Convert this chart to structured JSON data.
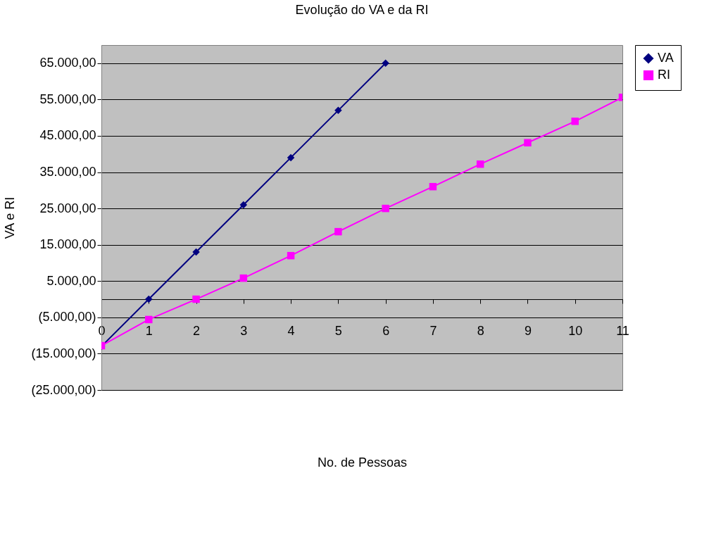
{
  "chart_data": {
    "type": "line",
    "title": "Evolução do VA e da RI",
    "xlabel": "No. de Pessoas",
    "ylabel": "VA e RI",
    "x": [
      0,
      1,
      2,
      3,
      4,
      5,
      6,
      7,
      8,
      9,
      10,
      11
    ],
    "series": [
      {
        "name": "VA",
        "color": "#000080",
        "marker": "diamond",
        "values": [
          -13000,
          0,
          13000,
          26000,
          39000,
          52000,
          65000,
          null,
          null,
          null,
          null,
          null
        ]
      },
      {
        "name": "RI",
        "color": "#ff00ff",
        "marker": "square",
        "values": [
          -12800,
          -5600,
          0,
          5800,
          12000,
          18600,
          25000,
          31000,
          37200,
          43100,
          49000,
          55600
        ]
      }
    ],
    "xlim": [
      0,
      11
    ],
    "xticks": [
      0,
      1,
      2,
      3,
      4,
      5,
      6,
      7,
      8,
      9,
      10,
      11
    ],
    "ylim": [
      -25000,
      70000
    ],
    "yticks": [
      {
        "value": -25000,
        "label": "(25.000,00)"
      },
      {
        "value": -15000,
        "label": "(15.000,00)"
      },
      {
        "value": -5000,
        "label": "(5.000,00)"
      },
      {
        "value": 5000,
        "label": "5.000,00"
      },
      {
        "value": 15000,
        "label": "15.000,00"
      },
      {
        "value": 25000,
        "label": "25.000,00"
      },
      {
        "value": 35000,
        "label": "35.000,00"
      },
      {
        "value": 45000,
        "label": "45.000,00"
      },
      {
        "value": 55000,
        "label": "55.000,00"
      },
      {
        "value": 65000,
        "label": "65.000,00"
      }
    ],
    "grid": "y",
    "legend": "right",
    "line_style": "solid"
  }
}
